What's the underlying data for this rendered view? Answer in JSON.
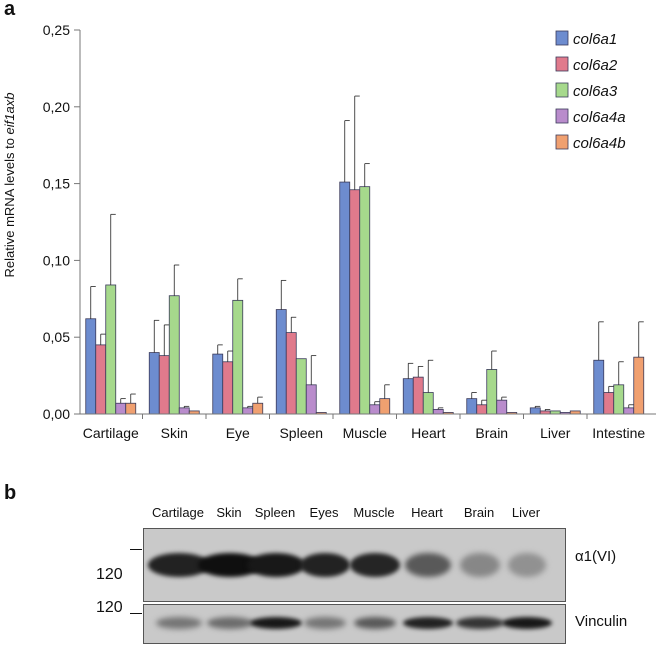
{
  "panels": {
    "a": "a",
    "b": "b"
  },
  "chart_data": {
    "type": "bar",
    "title": "",
    "ylabel": "Relative mRNA levels to ",
    "ylabel_italic": "eif1axb",
    "xlabel": "",
    "ylim": [
      0,
      0.25
    ],
    "yticks": [
      0,
      0.05,
      0.1,
      0.15,
      0.2,
      0.25
    ],
    "ytick_labels": [
      "0,00",
      "0,05",
      "0,10",
      "0,15",
      "0,20",
      "0,25"
    ],
    "grid": false,
    "legend": "top-right",
    "categories": [
      "Cartilage",
      "Skin",
      "Eye",
      "Spleen",
      "Muscle",
      "Heart",
      "Brain",
      "Liver",
      "Intestine"
    ],
    "series": [
      {
        "name": "col6a1",
        "color": "#6d8ccf",
        "values": [
          0.062,
          0.04,
          0.039,
          0.068,
          0.151,
          0.023,
          0.01,
          0.004,
          0.035
        ],
        "errors": [
          0.021,
          0.021,
          0.006,
          0.019,
          0.04,
          0.01,
          0.004,
          0.001,
          0.025
        ]
      },
      {
        "name": "col6a2",
        "color": "#e07a8c",
        "values": [
          0.045,
          0.038,
          0.034,
          0.053,
          0.146,
          0.024,
          0.006,
          0.002,
          0.014
        ],
        "errors": [
          0.007,
          0.02,
          0.007,
          0.01,
          0.061,
          0.007,
          0.003,
          0.001,
          0.004
        ]
      },
      {
        "name": "col6a3",
        "color": "#a6d98c",
        "values": [
          0.084,
          0.077,
          0.074,
          0.036,
          0.148,
          0.014,
          0.029,
          0.002,
          0.019
        ],
        "errors": [
          0.046,
          0.02,
          0.014,
          0.0,
          0.015,
          0.021,
          0.012,
          0.0,
          0.015
        ]
      },
      {
        "name": "col6a4a",
        "color": "#b98ccc",
        "values": [
          0.007,
          0.004,
          0.004,
          0.019,
          0.006,
          0.003,
          0.009,
          0.001,
          0.004
        ],
        "errors": [
          0.003,
          0.001,
          0.001,
          0.019,
          0.002,
          0.001,
          0.002,
          0.0,
          0.002
        ]
      },
      {
        "name": "col6a4b",
        "color": "#f0a070",
        "values": [
          0.007,
          0.002,
          0.007,
          0.001,
          0.01,
          0.001,
          0.001,
          0.002,
          0.037
        ],
        "errors": [
          0.006,
          0.0,
          0.004,
          0.0,
          0.009,
          0.0,
          0.0,
          0.0,
          0.023
        ]
      }
    ]
  },
  "blot": {
    "lanes": [
      "Cartilage",
      "Skin",
      "Spleen",
      "Eyes",
      "Muscle",
      "Heart",
      "Brain",
      "Liver"
    ],
    "top_label": "α1(VI)",
    "bottom_label": "Vinculin",
    "mw_top": "120",
    "mw_bottom": "120",
    "top_band_intensity": [
      0.9,
      1.0,
      0.95,
      0.9,
      0.88,
      0.6,
      0.35,
      0.3
    ],
    "bottom_band_intensity": [
      0.45,
      0.5,
      0.95,
      0.45,
      0.6,
      0.9,
      0.8,
      0.95
    ]
  }
}
